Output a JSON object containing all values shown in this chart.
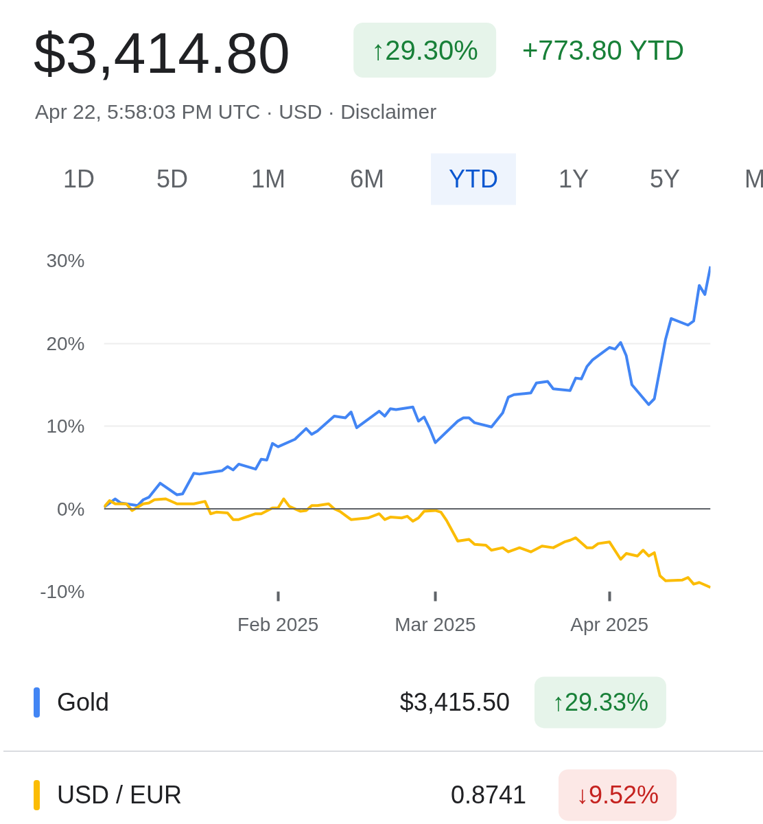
{
  "chart_data": {
    "type": "line",
    "title": "$3,414.80",
    "subtitle": "Apr 22, 5:58:03 PM UTC · USD · Disclaimer",
    "annotations": [
      "↑29.30%",
      "+773.80 YTD",
      "1D",
      "5D",
      "1M",
      "6M",
      "YTD",
      "1Y",
      "5Y",
      "M",
      "$3,415.50",
      "↑29.33%",
      "0.8741",
      "↓9.52%"
    ],
    "xlim": [
      "2025-01-01",
      "2025-04-19"
    ],
    "xticks": [
      {
        "value": "2025-02-01",
        "label": "Feb 2025"
      },
      {
        "value": "2025-03-01",
        "label": "Mar 2025"
      },
      {
        "value": "2025-04-01",
        "label": "Apr 2025"
      }
    ],
    "ylim": [
      -10,
      30
    ],
    "yticks": [
      {
        "value": -10,
        "label": "-10%"
      },
      {
        "value": 0,
        "label": "0%"
      },
      {
        "value": 10,
        "label": "10%"
      },
      {
        "value": 20,
        "label": "20%"
      },
      {
        "value": 30,
        "label": "30%"
      }
    ],
    "grid": "y",
    "legend": "bottom",
    "line_style": "solid",
    "ref_lines": [
      {
        "axis": "y",
        "value": 0,
        "color": "#5f6368"
      }
    ],
    "series": [
      {
        "name": "Gold",
        "color": "#4285f4",
        "x": [
          "2025-01-01",
          "2025-01-03",
          "2025-01-04",
          "2025-01-07",
          "2025-01-08",
          "2025-01-09",
          "2025-01-11",
          "2025-01-14",
          "2025-01-15",
          "2025-01-17",
          "2025-01-18",
          "2025-01-22",
          "2025-01-23",
          "2025-01-24",
          "2025-01-25",
          "2025-01-28",
          "2025-01-29",
          "2025-01-30",
          "2025-01-31",
          "2025-02-01",
          "2025-02-04",
          "2025-02-06",
          "2025-02-07",
          "2025-02-08",
          "2025-02-11",
          "2025-02-13",
          "2025-02-14",
          "2025-02-15",
          "2025-02-19",
          "2025-02-20",
          "2025-02-21",
          "2025-02-22",
          "2025-02-25",
          "2025-02-26",
          "2025-02-27",
          "2025-02-28",
          "2025-03-01",
          "2025-03-05",
          "2025-03-06",
          "2025-03-07",
          "2025-03-08",
          "2025-03-11",
          "2025-03-13",
          "2025-03-14",
          "2025-03-15",
          "2025-03-18",
          "2025-03-19",
          "2025-03-21",
          "2025-03-22",
          "2025-03-25",
          "2025-03-26",
          "2025-03-27",
          "2025-03-28",
          "2025-03-29",
          "2025-04-01",
          "2025-04-02",
          "2025-04-03",
          "2025-04-04",
          "2025-04-05",
          "2025-04-08",
          "2025-04-09",
          "2025-04-11",
          "2025-04-12",
          "2025-04-15",
          "2025-04-16",
          "2025-04-17",
          "2025-04-18",
          "2025-04-19"
        ],
        "values": [
          0.2,
          1.2,
          0.7,
          0.4,
          1.1,
          1.4,
          3.1,
          1.7,
          1.8,
          4.3,
          4.2,
          4.6,
          5.1,
          4.7,
          5.4,
          4.8,
          6.0,
          5.9,
          7.9,
          7.5,
          8.4,
          9.7,
          9.0,
          9.4,
          11.2,
          11.0,
          11.7,
          9.8,
          11.8,
          11.2,
          12.1,
          12.0,
          12.3,
          10.6,
          11.1,
          9.7,
          8.0,
          10.6,
          11.0,
          11.0,
          10.4,
          9.9,
          11.6,
          13.5,
          13.8,
          14.0,
          15.2,
          15.4,
          14.5,
          14.3,
          15.8,
          15.7,
          17.2,
          18.0,
          19.5,
          19.3,
          20.1,
          18.5,
          15.0,
          12.6,
          13.3,
          20.5,
          23.0,
          22.2,
          22.7,
          27.0,
          25.9,
          29.3
        ]
      },
      {
        "name": "USD / EUR",
        "color": "#fbbc04",
        "x": [
          "2025-01-01",
          "2025-01-02",
          "2025-01-03",
          "2025-01-05",
          "2025-01-06",
          "2025-01-08",
          "2025-01-09",
          "2025-01-10",
          "2025-01-12",
          "2025-01-14",
          "2025-01-17",
          "2025-01-19",
          "2025-01-20",
          "2025-01-21",
          "2025-01-23",
          "2025-01-24",
          "2025-01-25",
          "2025-01-28",
          "2025-01-29",
          "2025-01-31",
          "2025-02-01",
          "2025-02-02",
          "2025-02-03",
          "2025-02-05",
          "2025-02-06",
          "2025-02-07",
          "2025-02-08",
          "2025-02-10",
          "2025-02-11",
          "2025-02-12",
          "2025-02-14",
          "2025-02-17",
          "2025-02-19",
          "2025-02-20",
          "2025-02-21",
          "2025-02-23",
          "2025-02-24",
          "2025-02-25",
          "2025-02-26",
          "2025-02-27",
          "2025-03-01",
          "2025-03-02",
          "2025-03-03",
          "2025-03-05",
          "2025-03-07",
          "2025-03-08",
          "2025-03-10",
          "2025-03-11",
          "2025-03-13",
          "2025-03-14",
          "2025-03-16",
          "2025-03-18",
          "2025-03-20",
          "2025-03-22",
          "2025-03-24",
          "2025-03-25",
          "2025-03-26",
          "2025-03-28",
          "2025-03-29",
          "2025-03-30",
          "2025-04-01",
          "2025-04-03",
          "2025-04-04",
          "2025-04-06",
          "2025-04-07",
          "2025-04-08",
          "2025-04-09",
          "2025-04-10",
          "2025-04-11",
          "2025-04-14",
          "2025-04-15",
          "2025-04-16",
          "2025-04-17",
          "2025-04-19"
        ],
        "values": [
          0.2,
          1.0,
          0.6,
          0.6,
          -0.2,
          0.6,
          0.7,
          1.1,
          1.2,
          0.6,
          0.6,
          0.9,
          -0.6,
          -0.4,
          -0.5,
          -1.3,
          -1.3,
          -0.6,
          -0.6,
          0.1,
          0.1,
          1.2,
          0.3,
          -0.3,
          -0.2,
          0.4,
          0.4,
          0.6,
          0.0,
          -0.3,
          -1.3,
          -1.1,
          -0.6,
          -1.3,
          -1.0,
          -1.1,
          -0.9,
          -1.5,
          -1.1,
          -0.3,
          -0.2,
          -0.4,
          -1.4,
          -3.9,
          -3.7,
          -4.3,
          -4.4,
          -5.0,
          -4.7,
          -5.2,
          -4.7,
          -5.2,
          -4.5,
          -4.7,
          -4.0,
          -3.8,
          -3.5,
          -4.7,
          -4.7,
          -4.2,
          -4.0,
          -6.1,
          -5.4,
          -5.7,
          -5.0,
          -5.7,
          -5.3,
          -8.1,
          -8.7,
          -8.6,
          -8.3,
          -9.1,
          -8.9,
          -9.5
        ]
      }
    ]
  }
}
